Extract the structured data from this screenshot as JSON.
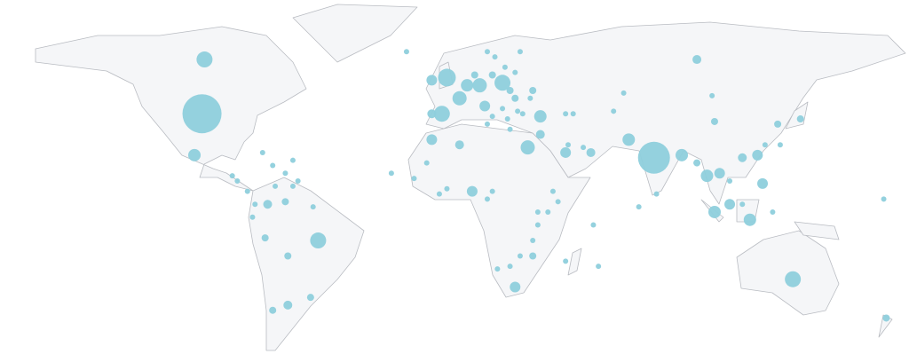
{
  "chart_data": {
    "type": "bubble-map",
    "color": "#8ecfdc",
    "xlim": [
      -180,
      180
    ],
    "ylim": [
      -57,
      83
    ],
    "x": [
      -100,
      -99,
      -103,
      79,
      103,
      96,
      -54,
      134,
      -3,
      -9,
      2,
      5,
      10,
      19,
      -5,
      -9,
      12,
      34,
      29,
      -9,
      2,
      7,
      69,
      90,
      100,
      105,
      120,
      114,
      122,
      103,
      109,
      117,
      24,
      44,
      54,
      34,
      96,
      137,
      128,
      -75,
      -74,
      -66,
      -67,
      -57,
      -66,
      -72,
      171,
      170,
      73,
      80,
      55,
      57,
      44,
      17,
      22,
      26,
      31,
      31,
      33,
      33,
      37,
      41,
      39,
      13,
      15,
      -3,
      -6,
      -11,
      -16,
      -25,
      -19,
      26,
      16,
      13,
      20,
      31,
      24,
      25,
      27,
      44,
      47,
      51,
      45,
      63,
      67,
      102,
      129,
      123,
      109,
      114,
      126,
      -80,
      -79,
      -76,
      -88,
      -86,
      -82,
      -71,
      -64,
      -56,
      -62,
      -72,
      -67,
      -64,
      24,
      22,
      30,
      15,
      19,
      21,
      13,
      22,
      15,
      8
    ],
    "y": [
      39,
      60,
      23,
      22,
      36,
      60,
      -10,
      -25,
      53,
      52,
      45,
      50,
      50,
      51,
      39,
      39,
      42,
      38,
      26,
      29,
      27,
      9,
      29,
      23,
      15,
      16,
      23,
      22,
      12,
      1,
      4,
      -2,
      -28,
      24,
      24,
      31,
      20,
      37,
      35,
      -9,
      4,
      -16,
      5,
      -32,
      -35,
      -37,
      -40,
      6,
      3,
      8,
      -4,
      -20,
      -18,
      -21,
      -20,
      -16,
      -16,
      -10,
      -4,
      1,
      1,
      5,
      9,
      6,
      9,
      10,
      8,
      20,
      14,
      16,
      63,
      63,
      61,
      63,
      57,
      48,
      45,
      40,
      39,
      39,
      39,
      26,
      27,
      40,
      47,
      46,
      27,
      27,
      13,
      4,
      1,
      -1,
      4,
      24,
      15,
      13,
      9,
      11,
      11,
      3,
      13,
      19,
      16,
      21,
      55,
      48,
      45,
      38,
      41,
      37,
      35,
      33,
      54,
      54
    ],
    "sizes": [
      484,
      81,
      49,
      324,
      16,
      25,
      81,
      81,
      100,
      36,
      64,
      49,
      64,
      81,
      81,
      25,
      36,
      49,
      64,
      36,
      25,
      36,
      49,
      49,
      49,
      36,
      36,
      25,
      36,
      49,
      36,
      49,
      36,
      36,
      25,
      25,
      16,
      16,
      16,
      16,
      25,
      16,
      16,
      16,
      25,
      16,
      16,
      9,
      9,
      9,
      9,
      9,
      9,
      9,
      9,
      9,
      16,
      9,
      9,
      9,
      9,
      9,
      9,
      9,
      9,
      9,
      9,
      9,
      9,
      9,
      9,
      9,
      9,
      9,
      9,
      16,
      16,
      9,
      9,
      9,
      9,
      9,
      9,
      9,
      9,
      9,
      9,
      9,
      9,
      9,
      9,
      9,
      9,
      9,
      9,
      9,
      9,
      9,
      9,
      9,
      9,
      9,
      9,
      9,
      9,
      16,
      9,
      9,
      9,
      9,
      9,
      9,
      16,
      16
    ]
  }
}
